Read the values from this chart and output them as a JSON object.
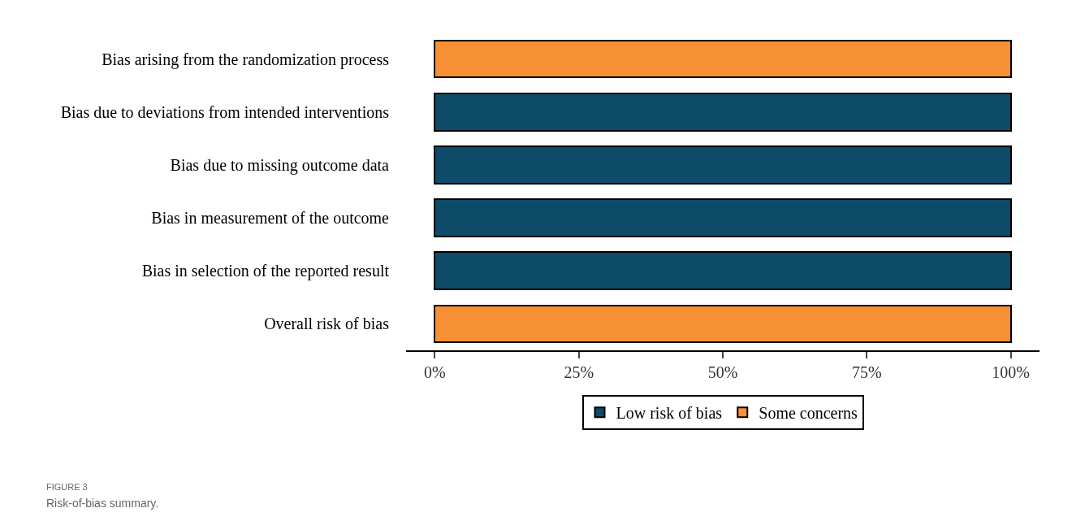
{
  "chart_data": {
    "type": "bar",
    "orientation": "horizontal",
    "stacked": true,
    "categories": [
      "Bias arising from the randomization process",
      "Bias due to deviations from intended interventions",
      "Bias due to missing outcome data",
      "Bias in measurement of the outcome",
      "Bias in selection of the reported result",
      "Overall risk of bias"
    ],
    "series": [
      {
        "name": "Low risk of bias",
        "color": "#0e4b69",
        "values": [
          0,
          100,
          100,
          100,
          100,
          0
        ]
      },
      {
        "name": "Some concerns",
        "color": "#f78f34",
        "values": [
          100,
          0,
          0,
          0,
          0,
          100
        ]
      }
    ],
    "xlim": [
      -5,
      105
    ],
    "xticks": [
      {
        "value": 0,
        "label": "0%"
      },
      {
        "value": 25,
        "label": "25%"
      },
      {
        "value": 50,
        "label": "50%"
      },
      {
        "value": 75,
        "label": "75%"
      },
      {
        "value": 100,
        "label": "100%"
      }
    ],
    "grid": false,
    "legend": "bottom",
    "annotations": [
      "FIGURE 3",
      "Risk-of-bias summary."
    ]
  }
}
